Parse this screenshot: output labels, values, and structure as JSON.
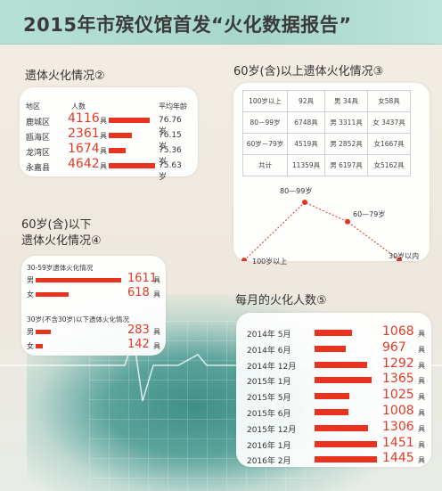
{
  "header": {
    "title": "2015年市殡仪馆首发“火化数据报告”"
  },
  "chart_data": [
    {
      "type": "table",
      "title": "遗体火化情况②",
      "columns": [
        "地区",
        "人数",
        "平均年龄"
      ],
      "unit": "具",
      "rows": [
        {
          "region": "鹿城区",
          "count": 4116,
          "avg_age": "76.76岁"
        },
        {
          "region": "瓯海区",
          "count": 2361,
          "avg_age": "76.15岁"
        },
        {
          "region": "龙湾区",
          "count": 1674,
          "avg_age": "75.36岁"
        },
        {
          "region": "永嘉县",
          "count": 4642,
          "avg_age": "75.63岁"
        }
      ]
    },
    {
      "type": "table",
      "title": "60岁(含)以上遗体火化情况③",
      "rows": [
        [
          "100岁以上",
          "92具",
          "男 34具",
          "女58具"
        ],
        [
          "80－99岁",
          "6748具",
          "男 3311具",
          "女 3437具"
        ],
        [
          "60岁－79岁",
          "4519具",
          "男 2852具",
          "女1667具"
        ],
        [
          "共计",
          "11359具",
          "男 6197具",
          "女5162具"
        ]
      ],
      "line_points": [
        {
          "label": "100岁以上",
          "value": 92
        },
        {
          "label": "80—99岁",
          "value": 6748
        },
        {
          "label": "60—79岁",
          "value": 4519
        },
        {
          "label": "30岁以内",
          "value": 142
        }
      ]
    },
    {
      "type": "bar",
      "title_line1": "60岁(含)以下",
      "title_line2": "遗体火化情况④",
      "unit": "具",
      "groups": [
        {
          "name": "30-59岁遗体火化情况",
          "items": [
            {
              "label": "男",
              "value": 1611
            },
            {
              "label": "女",
              "value": 618
            }
          ]
        },
        {
          "name": "30岁(不含30岁)以下遗体火化情况",
          "items": [
            {
              "label": "男",
              "value": 283
            },
            {
              "label": "女",
              "value": 142
            }
          ]
        }
      ]
    },
    {
      "type": "bar",
      "title": "每月的火化人数⑤",
      "unit": "具",
      "categories": [
        "2014年 5月",
        "2014年 6月",
        "2014年 12月",
        "2015年 1月",
        "2015年 5月",
        "2015年 6月",
        "2015年 12月",
        "2016年 1月",
        "2016年 2月"
      ],
      "values": [
        1068,
        967,
        1292,
        1365,
        1025,
        1008,
        1306,
        1451,
        1445
      ]
    }
  ]
}
